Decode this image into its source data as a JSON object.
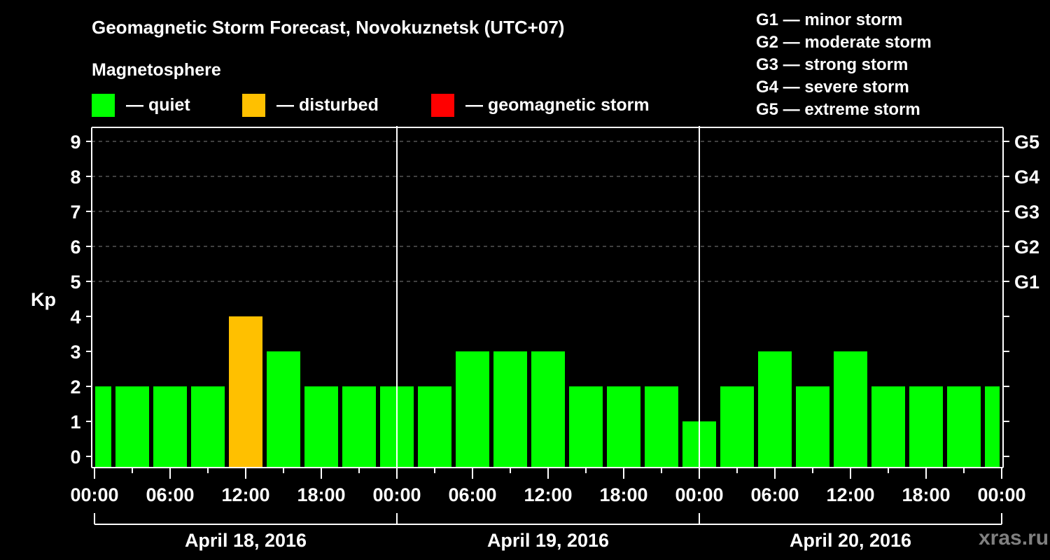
{
  "header": {
    "title": "Geomagnetic Storm Forecast, Novokuznetsk (UTC+07)",
    "magnetosphere_label": "Magnetosphere"
  },
  "legend": [
    {
      "label": "— quiet",
      "color": "#00ff00"
    },
    {
      "label": "— disturbed",
      "color": "#ffc000"
    },
    {
      "label": "— geomagnetic storm",
      "color": "#ff0000"
    }
  ],
  "storm_scale": [
    "G1 — minor storm",
    "G2 — moderate storm",
    "G3 — strong storm",
    "G4 — severe storm",
    "G5 — extreme storm"
  ],
  "watermark": "xras.ru",
  "colors": {
    "quiet": "#00ff00",
    "disturbed": "#ffc000",
    "storm": "#ff0000",
    "axis": "#ffffff",
    "grid": "#808080",
    "background": "#000000"
  },
  "chart_data": {
    "type": "bar",
    "title": "Geomagnetic Storm Forecast, Novokuznetsk (UTC+07)",
    "xlabel": "",
    "ylabel": "Kp",
    "ylim": [
      0,
      9
    ],
    "yticks": [
      0,
      1,
      2,
      3,
      4,
      5,
      6,
      7,
      8,
      9
    ],
    "right_axis_labels": [
      {
        "kp": 5,
        "label": "G1"
      },
      {
        "kp": 6,
        "label": "G2"
      },
      {
        "kp": 7,
        "label": "G3"
      },
      {
        "kp": 8,
        "label": "G4"
      },
      {
        "kp": 9,
        "label": "G5"
      }
    ],
    "grid": "horizontal dashed at Kp 5-9",
    "x_tick_labels": [
      "00:00",
      "06:00",
      "12:00",
      "18:00",
      "00:00",
      "06:00",
      "12:00",
      "18:00",
      "00:00",
      "06:00",
      "12:00",
      "18:00",
      "00:00"
    ],
    "days": [
      "April 18, 2016",
      "April 19, 2016",
      "April 20, 2016"
    ],
    "hours_from_start": [
      0,
      3,
      6,
      9,
      12,
      15,
      18,
      21,
      24,
      27,
      30,
      33,
      36,
      39,
      42,
      45,
      48,
      51,
      54,
      57,
      60,
      63,
      66,
      69,
      72
    ],
    "categories": [
      "Apr 18 00:00",
      "Apr 18 03:00",
      "Apr 18 06:00",
      "Apr 18 09:00",
      "Apr 18 12:00",
      "Apr 18 15:00",
      "Apr 18 18:00",
      "Apr 18 21:00",
      "Apr 19 00:00",
      "Apr 19 03:00",
      "Apr 19 06:00",
      "Apr 19 09:00",
      "Apr 19 12:00",
      "Apr 19 15:00",
      "Apr 19 18:00",
      "Apr 19 21:00",
      "Apr 20 00:00",
      "Apr 20 03:00",
      "Apr 20 06:00",
      "Apr 20 09:00",
      "Apr 20 12:00",
      "Apr 20 15:00",
      "Apr 20 18:00",
      "Apr 20 21:00",
      "Apr 21 00:00"
    ],
    "values": [
      2,
      2,
      2,
      2,
      4,
      3,
      2,
      2,
      2,
      2,
      3,
      3,
      3,
      2,
      2,
      2,
      1,
      2,
      3,
      2,
      3,
      2,
      2,
      2,
      2
    ],
    "status": [
      "quiet",
      "quiet",
      "quiet",
      "quiet",
      "disturbed",
      "quiet",
      "quiet",
      "quiet",
      "quiet",
      "quiet",
      "quiet",
      "quiet",
      "quiet",
      "quiet",
      "quiet",
      "quiet",
      "quiet",
      "quiet",
      "quiet",
      "quiet",
      "quiet",
      "quiet",
      "quiet",
      "quiet",
      "quiet"
    ],
    "legend_position": "top"
  }
}
